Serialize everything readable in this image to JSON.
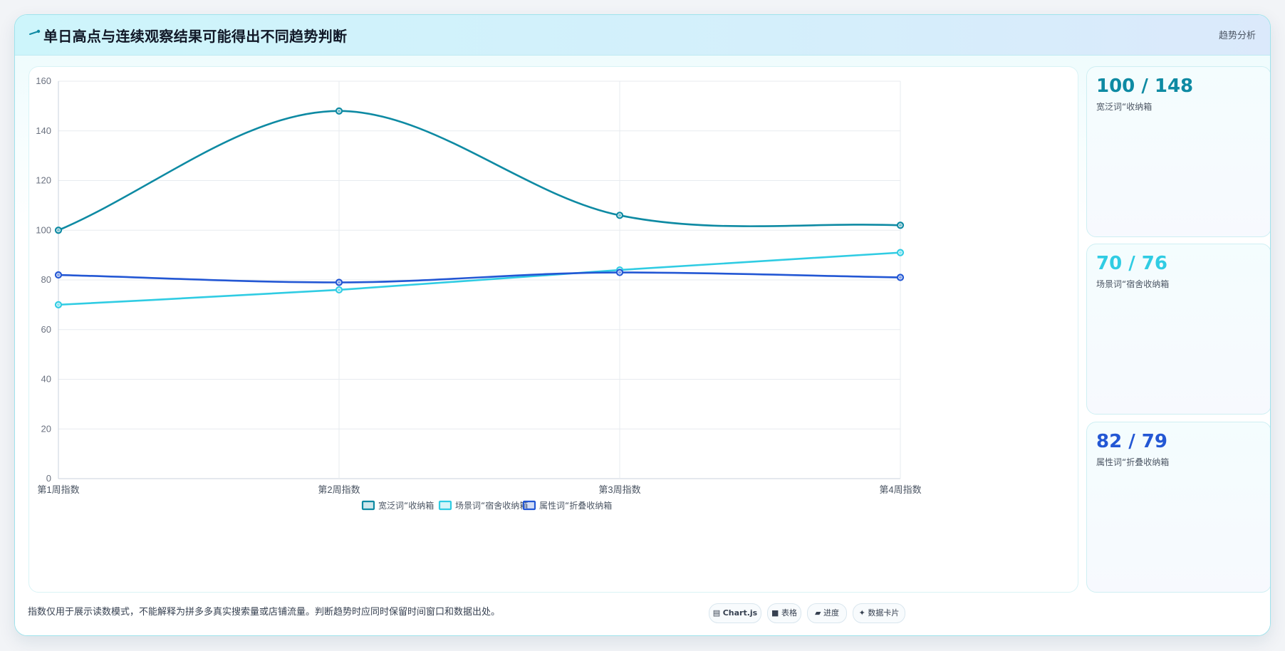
{
  "header": {
    "icon": "comet-icon",
    "title": "单日高点与连续观察结果可能得出不同趋势判断",
    "tag": "趋势分析"
  },
  "chart_data": {
    "type": "line",
    "categories": [
      "第1周指数",
      "第2周指数",
      "第3周指数",
      "第4周指数"
    ],
    "ylim": [
      0,
      160
    ],
    "yticks": [
      0,
      20,
      40,
      60,
      80,
      100,
      120,
      140,
      160
    ],
    "grid": true,
    "legend_position": "bottom",
    "series": [
      {
        "name": "宽泛词“收纳箱",
        "values": [
          100,
          148,
          106,
          102
        ],
        "color": "#0e8aa3"
      },
      {
        "name": "场景词“宿舍收纳箱",
        "values": [
          70,
          76,
          84,
          91
        ],
        "color": "#30cce3"
      },
      {
        "name": "属性词“折叠收纳箱",
        "values": [
          82,
          79,
          83,
          81
        ],
        "color": "#2357d4"
      }
    ]
  },
  "stats": [
    {
      "value": "100 / 148",
      "label": "宽泛词“收纳箱",
      "color": "#0e8aa3"
    },
    {
      "value": "70 / 76",
      "label": "场景词“宿舍收纳箱",
      "color": "#30cce3"
    },
    {
      "value": "82 / 79",
      "label": "属性词“折叠收纳箱",
      "color": "#2357d4"
    }
  ],
  "footer": {
    "note": "指数仅用于展示读数模式，不能解释为拼多多真实搜索量或店铺流量。判断趋势时应同时保留时间窗口和数据出处。",
    "chips": [
      {
        "icon": "chart-icon",
        "glyph": "▤",
        "label": "Chart.js"
      },
      {
        "icon": "table-icon",
        "glyph": "■",
        "label": "表格"
      },
      {
        "icon": "progress-icon",
        "glyph": "▰",
        "label": "进度"
      },
      {
        "icon": "sparkle-icon",
        "glyph": "✦",
        "label": "数据卡片"
      }
    ]
  }
}
